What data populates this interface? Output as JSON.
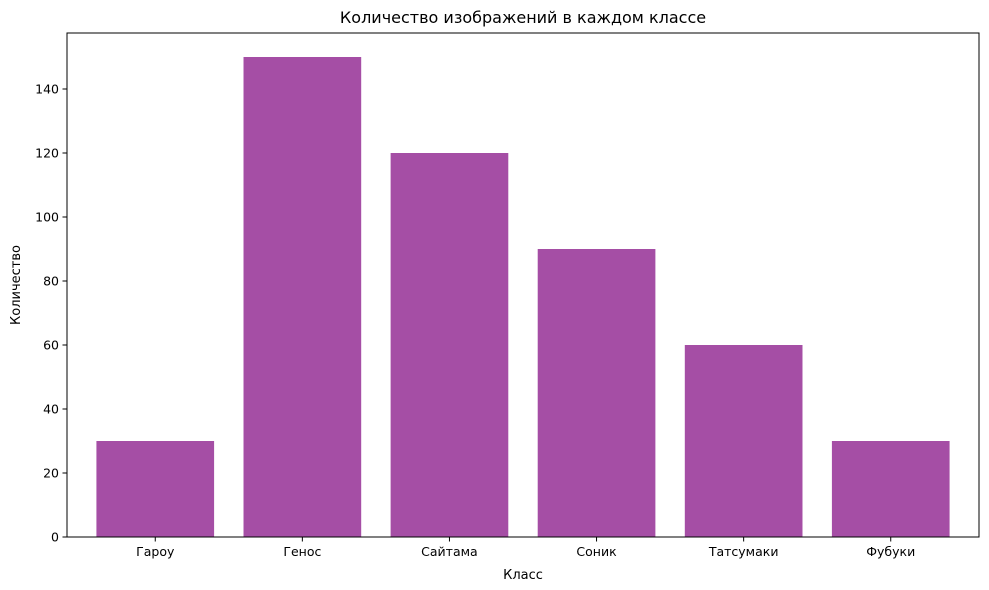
{
  "chart_data": {
    "type": "bar",
    "title": "Количество изображений в каждом классе",
    "xlabel": "Класс",
    "ylabel": "Количество",
    "categories": [
      "Гароу",
      "Генос",
      "Сайтама",
      "Соник",
      "Татсумаки",
      "Фубуки"
    ],
    "values": [
      30,
      150,
      120,
      90,
      60,
      30
    ],
    "ylim": [
      0,
      157.5
    ],
    "yticks": [
      0,
      20,
      40,
      60,
      80,
      100,
      120,
      140
    ],
    "bar_color": "#a54ea5",
    "grid": false,
    "legend": "none"
  }
}
